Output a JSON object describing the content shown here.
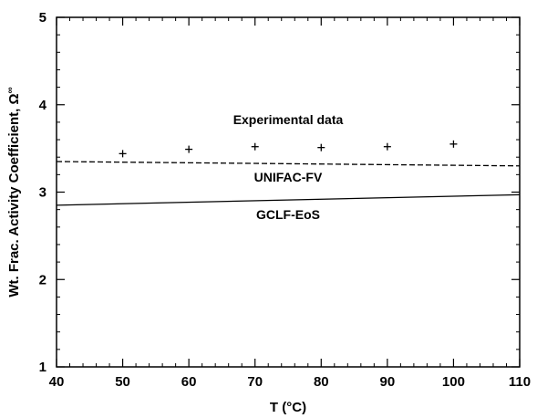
{
  "chart_data": {
    "type": "scatter",
    "xlabel": "T (°C)",
    "ylabel": "Wt. Frac. Activity Coefficient, Ω",
    "ylabel_superscript": "∞",
    "xlim": [
      40,
      110
    ],
    "ylim": [
      1,
      5
    ],
    "xticks": [
      40,
      50,
      60,
      70,
      80,
      90,
      100,
      110
    ],
    "yticks": [
      1,
      2,
      3,
      4,
      5
    ],
    "grid": false,
    "series": [
      {
        "style": "marker-plus",
        "x": [
          50,
          60,
          70,
          80,
          90,
          100
        ],
        "y": [
          3.44,
          3.49,
          3.52,
          3.51,
          3.52,
          3.55
        ]
      },
      {
        "style": "dashed-line",
        "x": [
          40,
          110
        ],
        "y": [
          3.35,
          3.3
        ]
      },
      {
        "style": "solid-line",
        "x": [
          40,
          110
        ],
        "y": [
          2.85,
          2.97
        ]
      }
    ],
    "annotations": [
      {
        "text": "Experimental data",
        "x": 75,
        "y": 3.78
      },
      {
        "text": "UNIFAC-FV",
        "x": 75,
        "y": 3.12
      },
      {
        "text": "GCLF-EoS",
        "x": 75,
        "y": 2.69
      }
    ]
  }
}
